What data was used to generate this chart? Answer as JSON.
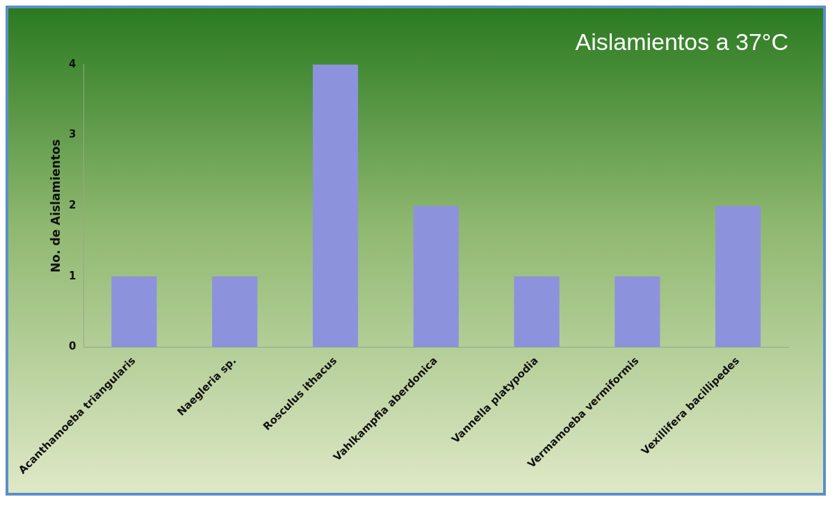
{
  "chart_data": {
    "type": "bar",
    "title": "Aislamientos a 37°C",
    "ylabel": "No. de Aislamientos",
    "categories": [
      "Acanthamoeba triangularis",
      "Naegleria sp.",
      "Rosculus ithacus",
      "Vahlkampfia aberdonica",
      "Vannella platypodia",
      "Vermamoeba vermiformis",
      "Vexillifera bacillipedes"
    ],
    "values": [
      1,
      1,
      4,
      2,
      1,
      1,
      2
    ],
    "color": "#8d92dc",
    "ylim": [
      0,
      4
    ],
    "yticks": [
      0,
      1,
      2,
      3,
      4
    ],
    "grid": false,
    "legend": false
  }
}
